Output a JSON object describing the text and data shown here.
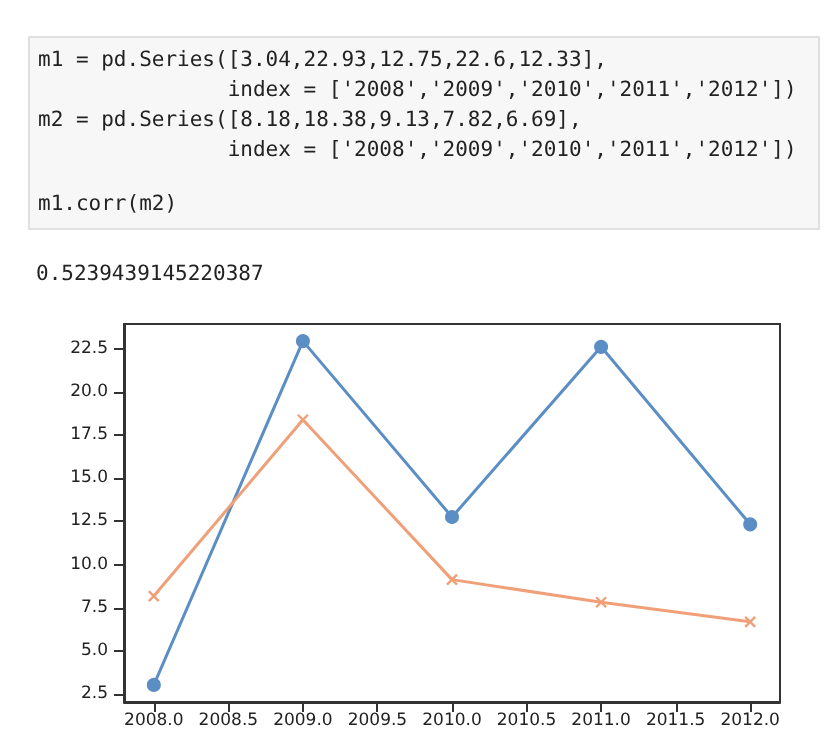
{
  "chart_data": {
    "type": "line",
    "annotations": [
      "m1 = pd.Series([3.04,22.93,12.75,22.6,12.33],",
      "               index = ['2008','2009','2010','2011','2012'])",
      "m2 = pd.Series([8.18,18.38,9.13,7.82,6.69],",
      "               index = ['2008','2009','2010','2011','2012'])",
      "m1.corr(m2)",
      "0.5239439145220387"
    ],
    "x": [
      2008,
      2009,
      2010,
      2011,
      2012
    ],
    "series": [
      {
        "color": "#5b8ec4",
        "values": [
          3.04,
          22.93,
          12.75,
          22.6,
          12.33
        ],
        "marker": "circle"
      },
      {
        "color": "#f0a078",
        "values": [
          8.18,
          18.38,
          9.13,
          7.82,
          6.69
        ],
        "marker": "cross"
      }
    ],
    "xlim": [
      2007.8,
      2012.2
    ],
    "xticks": [
      {
        "value": 2008,
        "label": "2008.0"
      },
      {
        "value": 2008.5,
        "label": "2008.5"
      },
      {
        "value": 2009,
        "label": "2009.0"
      },
      {
        "value": 2009.5,
        "label": "2009.5"
      },
      {
        "value": 2010,
        "label": "2010.0"
      },
      {
        "value": 2010.5,
        "label": "2010.5"
      },
      {
        "value": 2011,
        "label": "2011.0"
      },
      {
        "value": 2011.5,
        "label": "2011.5"
      },
      {
        "value": 2012,
        "label": "2012.0"
      }
    ],
    "ylim": [
      2.05,
      23.92
    ],
    "yticks": [
      2.5,
      {
        "value": 5,
        "label": "5.0"
      },
      7.5,
      {
        "value": 10,
        "label": "10.0"
      },
      12.5,
      {
        "value": 15,
        "label": "15.0"
      },
      17.5,
      {
        "value": 20,
        "label": "20.0"
      },
      22.5
    ],
    "grid": false,
    "line_style": "solid"
  }
}
